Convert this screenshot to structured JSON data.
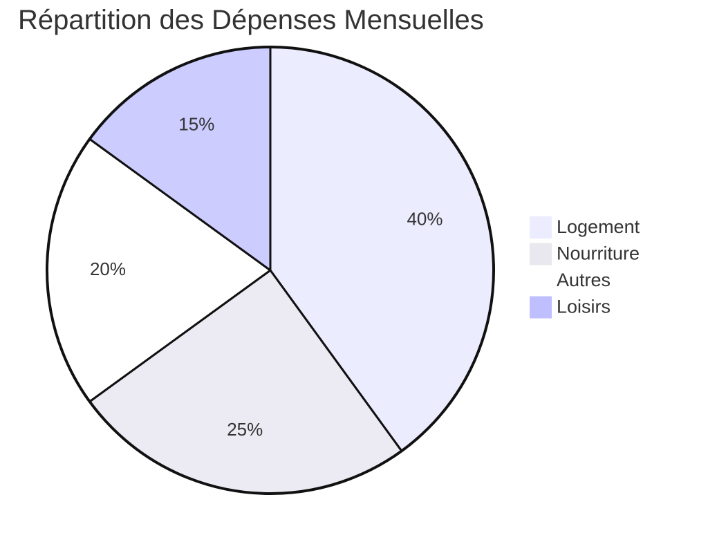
{
  "chart_data": {
    "type": "pie",
    "title": "Répartition des Dépenses Mensuelles",
    "categories": [
      "Logement",
      "Nourriture",
      "Autres",
      "Loisirs"
    ],
    "values": [
      40,
      25,
      20,
      15
    ],
    "labels": [
      "40%",
      "25%",
      "20%",
      "15%"
    ],
    "colors": [
      "#ECECFF",
      "#ECEBF3",
      "#FFFFFF",
      "#CCCCFF"
    ],
    "legend_colors": [
      "#ECECFF",
      "#E8E8EE",
      "#FFFFFF",
      "#BFBFFF"
    ],
    "stroke_color": "#111111",
    "start_angle": "12 o'clock",
    "direction": "clockwise",
    "legend_position": "right"
  }
}
